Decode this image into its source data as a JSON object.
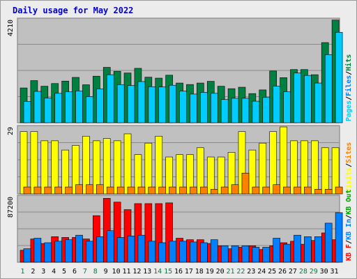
{
  "title": "Daily usage for May 2022",
  "colors": {
    "pages": "#00ccff",
    "files": "#0080ff",
    "hits": "#008040",
    "visits": "#ffff00",
    "sites": "#ff8000",
    "kbf": "#ff0000",
    "kbin": "#0080ff",
    "kbout": "#00a000",
    "day_weekend": "#008040",
    "day_weekday": "#000000",
    "sep": "#000000"
  },
  "chart_data": [
    {
      "type": "bar",
      "panel": "hits",
      "ymax_label": "4210",
      "ylim": [
        0,
        4210
      ],
      "legend": [
        {
          "label": "Pages",
          "color": "#00ccff"
        },
        {
          "label": "/",
          "color": "#000000"
        },
        {
          "label": "Files",
          "color": "#0080ff"
        },
        {
          "label": "/",
          "color": "#000000"
        },
        {
          "label": "Hits",
          "color": "#008040"
        }
      ],
      "categories": [
        "1",
        "2",
        "3",
        "4",
        "5",
        "6",
        "7",
        "8",
        "9",
        "10",
        "11",
        "12",
        "13",
        "14",
        "15",
        "16",
        "17",
        "18",
        "19",
        "20",
        "21",
        "22",
        "23",
        "24",
        "25",
        "26",
        "27",
        "28",
        "29",
        "30",
        "31"
      ],
      "series": [
        {
          "name": "Hits",
          "color": "#008040",
          "values": [
            1420,
            1720,
            1490,
            1600,
            1700,
            1850,
            1550,
            1900,
            2260,
            2100,
            2030,
            2220,
            1860,
            1820,
            1940,
            1620,
            1560,
            1620,
            1690,
            1490,
            1390,
            1450,
            1190,
            1340,
            2110,
            1840,
            2170,
            2170,
            1960,
            3270,
            4190
          ]
        },
        {
          "name": "Pages",
          "color": "#00ccff",
          "values": [
            870,
            1280,
            1010,
            1200,
            1260,
            1300,
            1070,
            1380,
            1960,
            1550,
            1520,
            1680,
            1470,
            1460,
            1530,
            1290,
            1170,
            1240,
            1200,
            950,
            1000,
            1000,
            880,
            1030,
            1490,
            1260,
            2030,
            1930,
            1620,
            2780,
            3690
          ]
        }
      ]
    },
    {
      "type": "bar",
      "panel": "visits",
      "ymax_label": "29",
      "ylim": [
        0,
        29
      ],
      "legend": [
        {
          "label": "Visits",
          "color": "#ffff00"
        },
        {
          "label": "/",
          "color": "#000000"
        },
        {
          "label": "Sites",
          "color": "#ff8000"
        }
      ],
      "categories": [
        "1",
        "2",
        "3",
        "4",
        "5",
        "6",
        "7",
        "8",
        "9",
        "10",
        "11",
        "12",
        "13",
        "14",
        "15",
        "16",
        "17",
        "18",
        "19",
        "20",
        "21",
        "22",
        "23",
        "24",
        "25",
        "26",
        "27",
        "28",
        "29",
        "30",
        "31"
      ],
      "series": [
        {
          "name": "Visits",
          "color": "#ffff00",
          "values": [
            27,
            27,
            23,
            23,
            19,
            21,
            25,
            23,
            24,
            23,
            26,
            17,
            22,
            25,
            16,
            17,
            17,
            20,
            16,
            16,
            18,
            27,
            19,
            22,
            27,
            30,
            23,
            23,
            23,
            20,
            20
          ]
        },
        {
          "name": "Sites",
          "color": "#ff8000",
          "values": [
            3,
            3,
            3,
            3,
            3,
            4,
            4,
            4,
            3,
            3,
            3,
            3,
            3,
            3,
            3,
            3,
            3,
            3,
            2,
            3,
            4,
            9,
            3,
            3,
            4,
            3,
            3,
            3,
            2,
            2,
            3
          ]
        }
      ]
    },
    {
      "type": "bar",
      "panel": "kbytes",
      "ymax_label": "87200",
      "ylim": [
        0,
        87200
      ],
      "legend": [
        {
          "label": "KB F",
          "color": "#ff0000"
        },
        {
          "label": "/",
          "color": "#000000"
        },
        {
          "label": "KB In",
          "color": "#0080ff"
        },
        {
          "label": "/",
          "color": "#000000"
        },
        {
          "label": "KB Out",
          "color": "#00a000"
        }
      ],
      "categories": [
        "1",
        "2",
        "3",
        "4",
        "5",
        "6",
        "7",
        "8",
        "9",
        "10",
        "11",
        "12",
        "13",
        "14",
        "15",
        "16",
        "17",
        "18",
        "19",
        "20",
        "21",
        "22",
        "23",
        "24",
        "25",
        "26",
        "27",
        "28",
        "29",
        "30",
        "31"
      ],
      "series": [
        {
          "name": "KB F",
          "color": "#ff0000",
          "values": [
            16000,
            31000,
            25000,
            34000,
            33000,
            33000,
            31000,
            62000,
            85000,
            80000,
            70000,
            78000,
            78000,
            78000,
            79000,
            32000,
            30000,
            30000,
            25000,
            22000,
            18000,
            20000,
            22000,
            17000,
            22000,
            26000,
            28000,
            24000,
            29000,
            39000,
            30000
          ]
        },
        {
          "name": "KB In",
          "color": "#0080ff",
          "values": [
            18000,
            32000,
            26000,
            28000,
            30000,
            36000,
            28000,
            34000,
            42000,
            33000,
            35000,
            36000,
            28000,
            26000,
            28000,
            28000,
            27000,
            26000,
            30000,
            22000,
            22000,
            22000,
            20000,
            20000,
            32000,
            24000,
            36000,
            34000,
            34000,
            52000,
            66000
          ]
        }
      ]
    }
  ],
  "days": [
    {
      "label": "1",
      "weekend": true
    },
    {
      "label": "2",
      "weekend": false
    },
    {
      "label": "3",
      "weekend": false
    },
    {
      "label": "4",
      "weekend": false
    },
    {
      "label": "5",
      "weekend": false
    },
    {
      "label": "6",
      "weekend": false
    },
    {
      "label": "7",
      "weekend": true
    },
    {
      "label": "8",
      "weekend": true
    },
    {
      "label": "9",
      "weekend": false
    },
    {
      "label": "10",
      "weekend": false
    },
    {
      "label": "11",
      "weekend": false
    },
    {
      "label": "12",
      "weekend": false
    },
    {
      "label": "13",
      "weekend": false
    },
    {
      "label": "14",
      "weekend": true
    },
    {
      "label": "15",
      "weekend": true
    },
    {
      "label": "16",
      "weekend": false
    },
    {
      "label": "17",
      "weekend": false
    },
    {
      "label": "18",
      "weekend": false
    },
    {
      "label": "19",
      "weekend": false
    },
    {
      "label": "20",
      "weekend": false
    },
    {
      "label": "21",
      "weekend": true
    },
    {
      "label": "22",
      "weekend": true
    },
    {
      "label": "23",
      "weekend": false
    },
    {
      "label": "24",
      "weekend": false
    },
    {
      "label": "25",
      "weekend": false
    },
    {
      "label": "26",
      "weekend": false
    },
    {
      "label": "27",
      "weekend": false
    },
    {
      "label": "28",
      "weekend": true
    },
    {
      "label": "29",
      "weekend": true
    },
    {
      "label": "30",
      "weekend": false
    },
    {
      "label": "31",
      "weekend": false
    }
  ]
}
